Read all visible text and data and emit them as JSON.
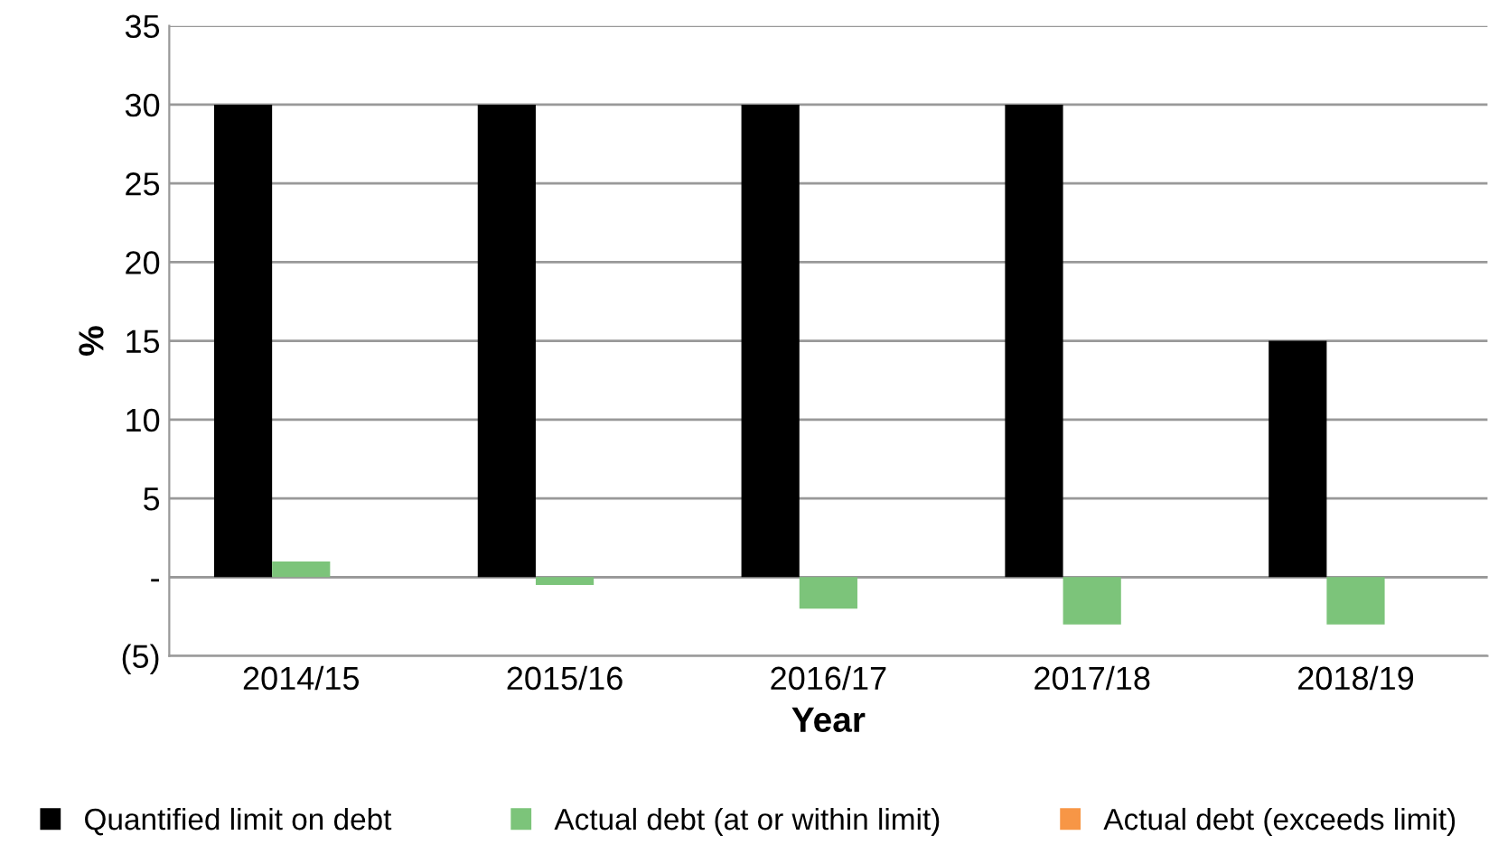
{
  "chart_data": {
    "type": "bar",
    "xlabel": "Year",
    "ylabel": "%",
    "categories": [
      "2014/15",
      "2015/16",
      "2016/17",
      "2017/18",
      "2018/19"
    ],
    "series": [
      {
        "name": "Quantified limit on debt",
        "color": "#000000",
        "values": [
          30,
          30,
          30,
          30,
          15
        ]
      },
      {
        "name": "Actual debt (at or within limit)",
        "color": "#7cc47a",
        "values": [
          1.0,
          -0.5,
          -2.0,
          -3.0,
          -3.0
        ]
      },
      {
        "name": "Actual debt (exceeds limit)",
        "color": "#f79646",
        "values": [
          null,
          null,
          null,
          null,
          null
        ]
      }
    ],
    "ylim": [
      -5,
      35
    ],
    "yticks": [
      {
        "value": -5,
        "label": "(5)"
      },
      {
        "value": 0,
        "label": "-"
      },
      5,
      10,
      15,
      20,
      25,
      30,
      35
    ],
    "grid": "y",
    "legend": "bottom"
  }
}
